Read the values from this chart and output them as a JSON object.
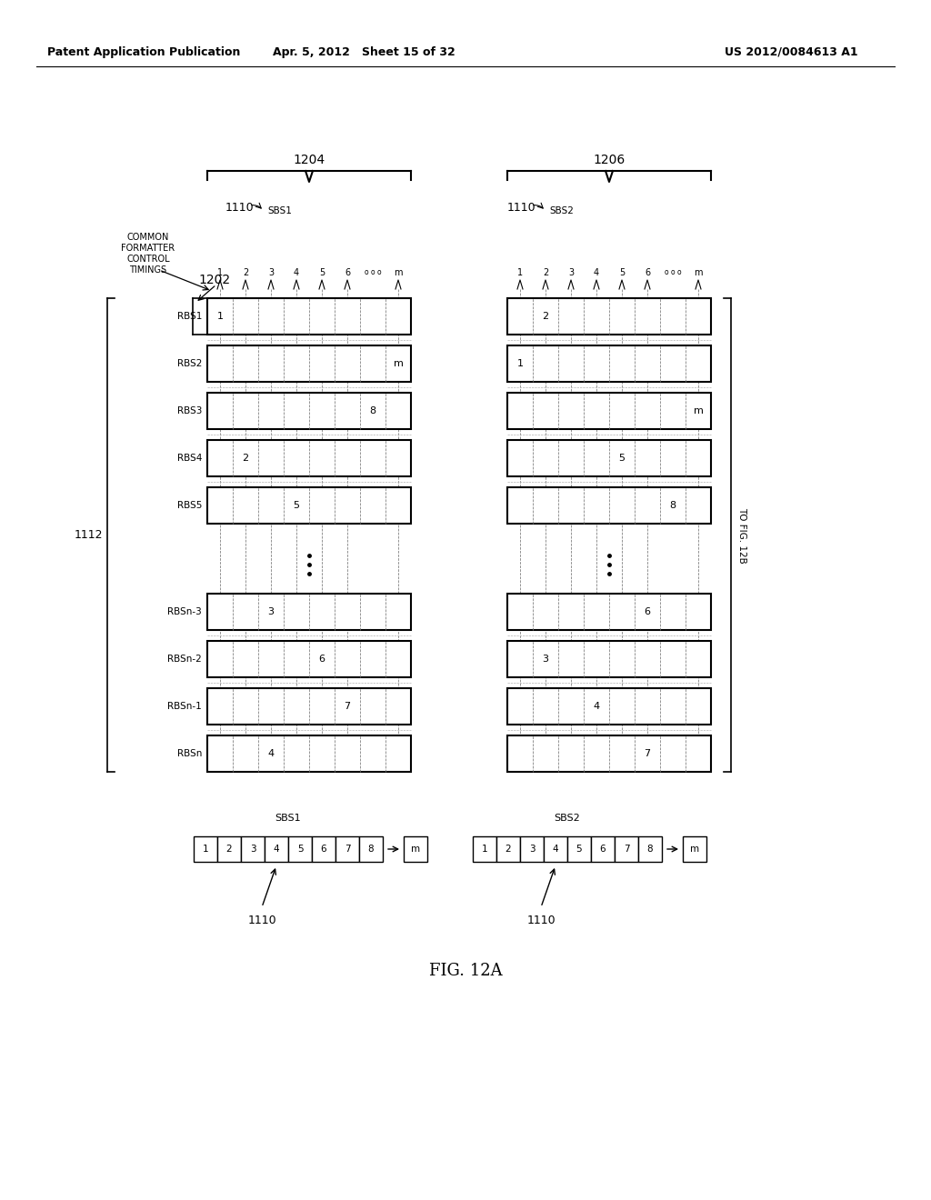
{
  "header_left": "Patent Application Publication",
  "header_mid": "Apr. 5, 2012   Sheet 15 of 32",
  "header_right": "US 2012/0084613 A1",
  "fig_label": "FIG. 12A",
  "label_1204": "1204",
  "label_1206": "1206",
  "label_1110": "1110",
  "label_1112": "1112",
  "label_1202": "1202",
  "sbs1_label": "SBS1",
  "sbs2_label": "SBS2",
  "common_formatter_lines": [
    "COMMON",
    "FORMATTER",
    "CONTROL",
    "TIMINGS"
  ],
  "to_fig": "TO FIG. 12B",
  "rbs_rows": [
    "RBS1",
    "RBS2",
    "RBS3",
    "RBS4",
    "RBS5",
    "RBSn-3",
    "RBSn-2",
    "RBSn-1",
    "RBSn"
  ],
  "num_cols": 8,
  "left_cell_values": {
    "RBS1": {
      "col": 1,
      "val": "1"
    },
    "RBS2": {
      "col": 8,
      "val": "m"
    },
    "RBS3": {
      "col": 7,
      "val": "8"
    },
    "RBS4": {
      "col": 2,
      "val": "2"
    },
    "RBS5": {
      "col": 4,
      "val": "5"
    },
    "RBSn-3": {
      "col": 3,
      "val": "3"
    },
    "RBSn-2": {
      "col": 5,
      "val": "6"
    },
    "RBSn-1": {
      "col": 6,
      "val": "7"
    },
    "RBSn": {
      "col": 3,
      "val": "4"
    }
  },
  "right_cell_values": {
    "RBS1": {
      "col": 2,
      "val": "2"
    },
    "RBS2": {
      "col": 1,
      "val": "1"
    },
    "RBS3": {
      "col": 8,
      "val": "m"
    },
    "RBS4": {
      "col": 5,
      "val": "5"
    },
    "RBS5": {
      "col": 7,
      "val": "8"
    },
    "RBSn-3": {
      "col": 6,
      "val": "6"
    },
    "RBSn-2": {
      "col": 2,
      "val": "3"
    },
    "RBSn-1": {
      "col": 4,
      "val": "4"
    },
    "RBSn": {
      "col": 6,
      "val": "7"
    }
  },
  "bottom_seq": [
    "1",
    "2",
    "3",
    "4",
    "5",
    "6",
    "7",
    "8"
  ],
  "bg_color": "#ffffff",
  "line_color": "#000000"
}
